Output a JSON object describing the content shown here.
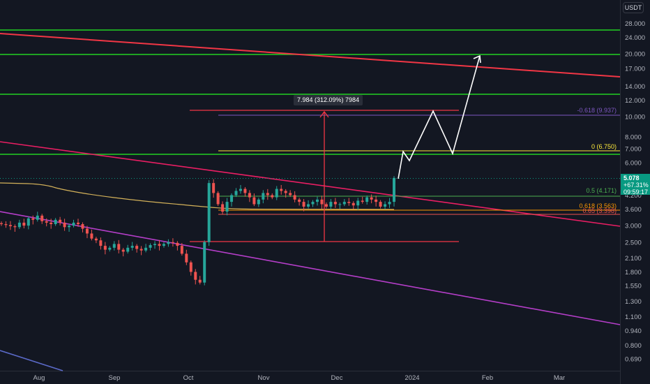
{
  "currency": "USDT",
  "last_price": {
    "value": "5.078",
    "change": "+67.31%",
    "countdown": "09:59:17"
  },
  "measure_label": "7.984 (312.09%) 7984",
  "fib_labels": [
    {
      "text": "-0.618 (9.937)",
      "color": "#7e57c2"
    },
    {
      "text": "0 (6.750)",
      "color": "#ffeb3b"
    },
    {
      "text": "0.5 (4.171)",
      "color": "#4caf50"
    },
    {
      "text": "0.618 (3.563)",
      "color": "#ff9800"
    },
    {
      "text": "0.65 (3.398)",
      "color": "#ef5350"
    }
  ],
  "chart_data": {
    "type": "candlestick",
    "y_scale": "log",
    "ylim": [
      0.6,
      33
    ],
    "y_ticks": [
      "28.000",
      "24.000",
      "20.000",
      "17.000",
      "14.000",
      "12.000",
      "10.000",
      "8.000",
      "7.000",
      "6.000",
      "5.000",
      "4.200",
      "3.600",
      "3.000",
      "2.500",
      "2.100",
      "1.800",
      "1.550",
      "1.300",
      "1.100",
      "0.940",
      "0.800",
      "0.690"
    ],
    "x_ticks": [
      "Aug",
      "Sep",
      "Oct",
      "Nov",
      "Dec",
      "2024",
      "Feb",
      "Mar"
    ],
    "close_series": [
      3.05,
      3.02,
      2.98,
      2.95,
      3.1,
      3.0,
      3.25,
      3.2,
      3.35,
      3.15,
      3.1,
      3.05,
      3.2,
      3.1,
      2.95,
      3.0,
      3.1,
      3.05,
      2.9,
      2.75,
      2.6,
      2.55,
      2.4,
      2.3,
      2.35,
      2.45,
      2.3,
      2.25,
      2.35,
      2.4,
      2.32,
      2.28,
      2.35,
      2.42,
      2.45,
      2.4,
      2.45,
      2.5,
      2.48,
      2.4,
      2.2,
      2.0,
      1.8,
      1.65,
      1.6,
      2.5,
      4.8,
      4.3,
      3.8,
      3.5,
      3.9,
      4.2,
      4.4,
      4.5,
      4.3,
      4.1,
      3.8,
      4.0,
      4.3,
      4.2,
      4.1,
      4.5,
      4.4,
      4.3,
      4.2,
      4.0,
      3.9,
      3.7,
      3.8,
      3.9,
      4.0,
      3.8,
      3.7,
      3.9,
      3.8,
      3.8,
      3.9,
      3.85,
      3.75,
      3.95,
      3.9,
      4.1,
      4.0,
      3.9,
      3.7,
      3.8,
      3.9,
      5.078
    ],
    "horizontal_levels": [
      25.5,
      19.3,
      12.5,
      6.55
    ],
    "fib_levels": {
      "-0.618": 9.937,
      "0": 6.75,
      "0.5": 4.171,
      "0.618": 3.563,
      "0.65": 3.398
    },
    "grid": false
  },
  "colors": {
    "background": "#131722",
    "up": "#26a69a",
    "down": "#ef5350",
    "green_line": "#22d022",
    "red_line": "#f23645",
    "pink_line": "#e91e63",
    "purple_line": "#b53ec9",
    "blue_line": "#5b6ac9",
    "ma_line": "#d4b25a"
  }
}
